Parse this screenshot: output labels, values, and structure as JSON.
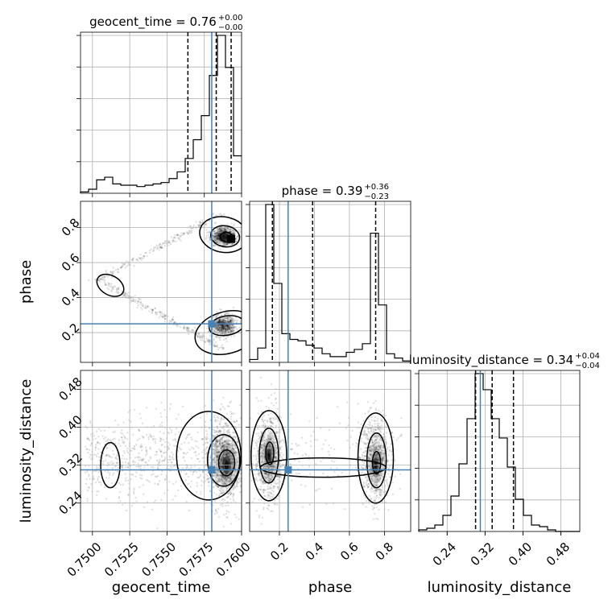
{
  "chart_data": {
    "type": "corner",
    "parameters": [
      "geocent_time",
      "phase",
      "luminosity_distance"
    ],
    "truths": {
      "geocent_time": 0.758,
      "phase": 0.25,
      "luminosity_distance": 0.31
    },
    "titles": [
      {
        "param": "geocent_time",
        "text": "geocent_time = 0.76",
        "plus": "+0.00",
        "minus": "−0.00"
      },
      {
        "param": "phase",
        "text": "phase = 0.39",
        "plus": "+0.36",
        "minus": "−0.23"
      },
      {
        "param": "luminosity_distance",
        "text": "luminosity_distance = 0.34",
        "plus": "+0.04",
        "minus": "−0.04"
      }
    ],
    "axes": {
      "geocent_time": {
        "range": [
          0.7492,
          0.76
        ],
        "ticks": [
          0.75,
          0.7525,
          0.755,
          0.7575,
          0.76
        ],
        "tick_labels": [
          "0.7500",
          "0.7525",
          "0.7550",
          "0.7575",
          "0.7600"
        ],
        "xlabel": "geocent_time"
      },
      "phase": {
        "range": [
          0.03,
          0.95
        ],
        "ticks": [
          0.2,
          0.4,
          0.6,
          0.8
        ],
        "tick_labels": [
          "0.2",
          "0.4",
          "0.6",
          "0.8"
        ],
        "xlabel": "phase",
        "ylabel": "phase"
      },
      "luminosity_distance": {
        "range": [
          0.18,
          0.52
        ],
        "ticks": [
          0.24,
          0.32,
          0.4,
          0.48
        ],
        "tick_labels": [
          "0.24",
          "0.32",
          "0.40",
          "0.48"
        ],
        "xlabel": "luminosity_distance",
        "ylabel": "luminosity_distance"
      }
    },
    "histograms": {
      "geocent_time": {
        "quantiles": [
          0.7564,
          0.7583,
          0.7593
        ],
        "bins": [
          0.7492,
          0.74974,
          0.75028,
          0.75082,
          0.75136,
          0.7519,
          0.75244,
          0.75298,
          0.75352,
          0.75406,
          0.7546,
          0.75514,
          0.75568,
          0.75622,
          0.75676,
          0.7573,
          0.75784,
          0.75838,
          0.75892,
          0.75946,
          0.76
        ],
        "counts": [
          1,
          3,
          10,
          12,
          7,
          6,
          6,
          5,
          6,
          7,
          8,
          11,
          16,
          26,
          40,
          58,
          88,
          118,
          94,
          28
        ]
      },
      "phase": {
        "quantiles": [
          0.16,
          0.39,
          0.75
        ],
        "bins": [
          0.03,
          0.076,
          0.122,
          0.168,
          0.214,
          0.26,
          0.306,
          0.352,
          0.398,
          0.444,
          0.49,
          0.536,
          0.582,
          0.628,
          0.674,
          0.72,
          0.766,
          0.812,
          0.858,
          0.904,
          0.95
        ],
        "counts": [
          2,
          10,
          110,
          55,
          20,
          16,
          15,
          12,
          10,
          6,
          4,
          4,
          7,
          9,
          13,
          90,
          40,
          6,
          3,
          1
        ]
      },
      "luminosity_distance": {
        "quantiles": [
          0.3,
          0.335,
          0.38
        ],
        "bins": [
          0.18,
          0.197,
          0.214,
          0.231,
          0.248,
          0.265,
          0.282,
          0.299,
          0.316,
          0.333,
          0.35,
          0.367,
          0.384,
          0.401,
          0.418,
          0.435,
          0.452,
          0.469,
          0.486,
          0.503,
          0.52
        ],
        "counts": [
          1,
          2,
          4,
          10,
          22,
          42,
          70,
          98,
          88,
          70,
          58,
          40,
          20,
          10,
          4,
          3,
          1,
          0,
          0,
          0
        ]
      }
    }
  }
}
